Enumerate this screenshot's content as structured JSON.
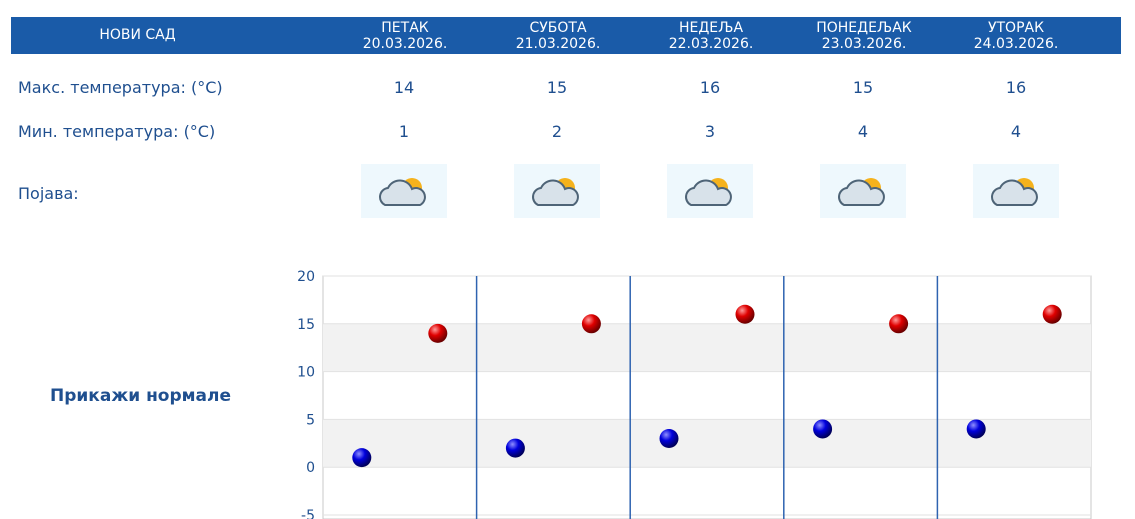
{
  "header": {
    "city": "НОВИ САД",
    "days": [
      {
        "name": "ПЕТАК",
        "date": "20.03.2026."
      },
      {
        "name": "СУБОТА",
        "date": "21.03.2026."
      },
      {
        "name": "НЕДЕЉА",
        "date": "22.03.2026."
      },
      {
        "name": "ПОНЕДЕЉАК",
        "date": "23.03.2026."
      },
      {
        "name": "УТОРАК",
        "date": "24.03.2026."
      }
    ]
  },
  "rows": {
    "max_label": "Макс. температура: (°C)",
    "min_label": "Мин. температура: (°C)",
    "phenomenon_label": "Појава:",
    "max_values": [
      "14",
      "15",
      "16",
      "15",
      "16"
    ],
    "min_values": [
      "1",
      "2",
      "3",
      "4",
      "4"
    ],
    "phenomenon_icons": [
      "cloud-sun-icon",
      "cloud-sun-icon",
      "cloud-sun-icon",
      "cloud-sun-icon",
      "cloud-sun-icon"
    ]
  },
  "show_normals_label": "Прикажи нормале",
  "colors": {
    "header_bg": "#1a5ba8",
    "text": "#1f4f8f",
    "max_marker": "#cc0000",
    "min_marker": "#0000cc"
  },
  "chart_data": {
    "type": "scatter",
    "y_ticks": [
      "20",
      "15",
      "10",
      "5",
      "0",
      "-5"
    ],
    "ylim": [
      -5,
      20
    ],
    "categories": [
      "20.03.2026.",
      "21.03.2026.",
      "22.03.2026.",
      "23.03.2026.",
      "24.03.2026."
    ],
    "series": [
      {
        "values": [
          1,
          2,
          3,
          4,
          4
        ],
        "color": "#0000cc"
      },
      {
        "values": [
          14,
          15,
          16,
          15,
          16
        ],
        "color": "#cc0000"
      }
    ]
  }
}
